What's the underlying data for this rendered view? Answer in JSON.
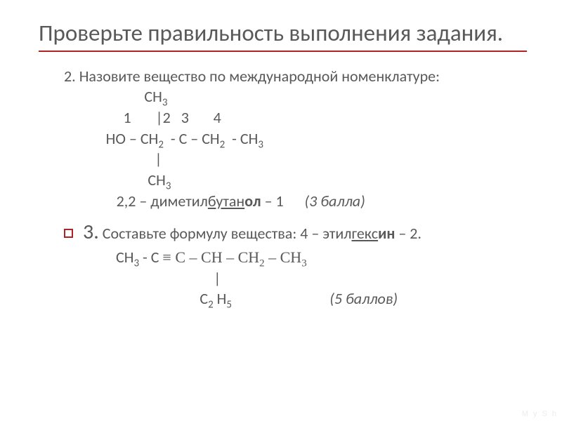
{
  "title": "Проверьте правильность выполнения задания.",
  "accent_color": "#b22222",
  "text_color": "#595959",
  "q2": {
    "number": "2.",
    "prompt": "Назовите вещество по международной номенклатуре:",
    "struct": {
      "l1_pre": "                       СН",
      "l2": "                 1       |2   3       4",
      "l3_a": "            НО – СН",
      "l3_b": "  - С – СН",
      "l3_c": "  - СН",
      "l4": "                          |",
      "l5_pre": "                        СН"
    },
    "sub3": "3",
    "sub2": "2",
    "answer_pre": "               2,2 – диметил",
    "answer_u": "бутан",
    "answer_bold": "ол",
    "answer_post": " – 1      ",
    "points": "(3 балла)"
  },
  "q3": {
    "number": "3.",
    "prompt_a": " Составьте формулу вещества: 4 – этил",
    "prompt_u": "гекс",
    "prompt_bold": "ин",
    "prompt_b": " – 2.",
    "struct": {
      "l1_a": "СН",
      "l1_b": " - С ",
      "l1_eq": "≡",
      "l1_c": " С – СН – СН",
      "l1_d": " – СН",
      "l2": "                            |",
      "l3_pre": "                        С",
      "l3_mid": " Н"
    },
    "sub3": "3",
    "sub2": "2",
    "sub5": "5",
    "points_spacer": "                            ",
    "points": "(5 баллов)"
  },
  "watermark": "M y S h"
}
